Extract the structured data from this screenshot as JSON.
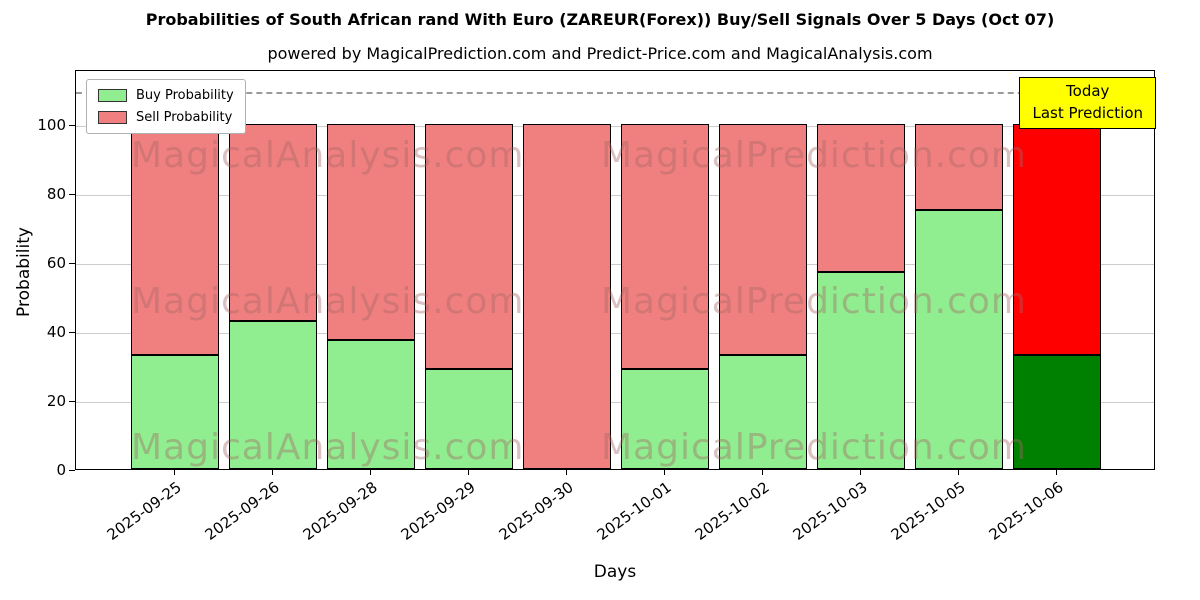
{
  "title": "Probabilities of South African rand With Euro (ZAREUR(Forex)) Buy/Sell Signals Over 5 Days (Oct 07)",
  "subtitle": "powered by MagicalPrediction.com and Predict-Price.com and MagicalAnalysis.com",
  "annotation": {
    "line1": "Today",
    "line2": "Last Prediction",
    "bg_color": "#ffff00"
  },
  "legend": [
    {
      "label": "Buy Probability",
      "color": "#90ee90"
    },
    {
      "label": "Sell Probability",
      "color": "#f08080"
    }
  ],
  "watermarks": {
    "left": "MagicalAnalysis.com",
    "right": "MagicalPrediction.com"
  },
  "chart_data": {
    "type": "bar",
    "stacked": true,
    "title": "Probabilities of South African rand With Euro (ZAREUR(Forex)) Buy/Sell Signals Over 5 Days (Oct 07)",
    "xlabel": "Days",
    "ylabel": "Probability",
    "categories": [
      "2025-09-25",
      "2025-09-26",
      "2025-09-28",
      "2025-09-29",
      "2025-09-30",
      "2025-10-01",
      "2025-10-02",
      "2025-10-03",
      "2025-10-05",
      "2025-10-06"
    ],
    "series": [
      {
        "name": "Buy Probability",
        "color": "#90ee90",
        "last_color": "#008000",
        "values": [
          33,
          43,
          37.5,
          29,
          0,
          29,
          33,
          57,
          75,
          33
        ]
      },
      {
        "name": "Sell Probability",
        "color": "#f08080",
        "last_color": "#ff0000",
        "values": [
          67,
          57,
          62.5,
          71,
          100,
          71,
          67,
          43,
          25,
          67
        ]
      }
    ],
    "yticks": [
      0,
      20,
      40,
      60,
      80,
      100
    ],
    "ylim": [
      0,
      116
    ],
    "dashed_line_y": 110,
    "grid": true,
    "legend_position": "upper left"
  }
}
